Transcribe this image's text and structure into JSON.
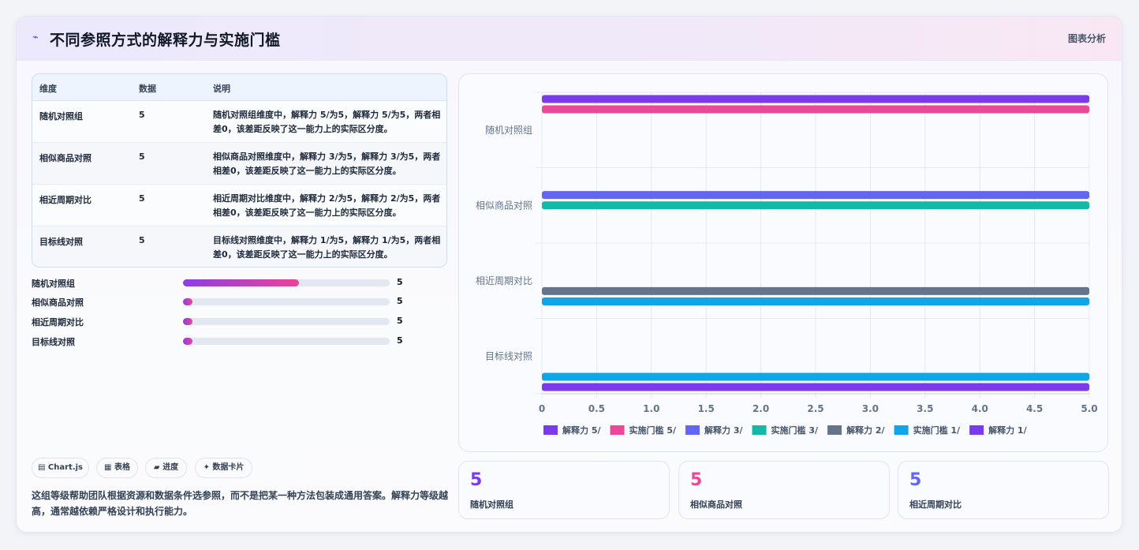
{
  "header": {
    "title": "不同参照方式的解释力与实施门槛",
    "tag": "图表分析"
  },
  "table": {
    "headers": [
      "维度",
      "数据",
      "说明"
    ],
    "rows": [
      {
        "name": "随机对照组",
        "value": "5",
        "desc": "随机对照组维度中，解释力 5/为5，解释力 5/为5，两者相差0，该差距反映了这一能力上的实际区分度。"
      },
      {
        "name": "相似商品对照",
        "value": "5",
        "desc": "相似商品对照维度中，解释力 3/为5，解释力 3/为5，两者相差0，该差距反映了这一能力上的实际区分度。"
      },
      {
        "name": "相近周期对比",
        "value": "5",
        "desc": "相近周期对比维度中，解释力 2/为5，解释力 2/为5，两者相差0，该差距反映了这一能力上的实际区分度。"
      },
      {
        "name": "目标线对照",
        "value": "5",
        "desc": "目标线对照维度中，解释力 1/为5，解释力 1/为5，两者相差0，该差距反映了这一能力上的实际区分度。"
      }
    ]
  },
  "progress": [
    {
      "label": "随机对照组",
      "value": "5",
      "fraction": 0.56
    },
    {
      "label": "相似商品对照",
      "value": "5",
      "fraction": 0.0
    },
    {
      "label": "相近周期对比",
      "value": "5",
      "fraction": 0.0
    },
    {
      "label": "目标线对照",
      "value": "5",
      "fraction": 0.0
    }
  ],
  "chips": [
    "▤ Chart.js",
    "▦ 表格",
    "▰ 进度",
    "✦ 数据卡片"
  ],
  "note": "这组等级帮助团队根据资源和数据条件选参照，而不是把某一种方法包装成通用答案。解释力等级越高，通常越依赖严格设计和执行能力。",
  "kpis": [
    {
      "value": "5",
      "label": "随机对照组",
      "color": "#7c3aed"
    },
    {
      "value": "5",
      "label": "相似商品对照",
      "color": "#ec4899"
    },
    {
      "value": "5",
      "label": "相近周期对比",
      "color": "#6366f1"
    }
  ],
  "chart_data": {
    "type": "bar",
    "orientation": "horizontal",
    "categories": [
      "随机对照组",
      "相似商品对照",
      "相近周期对比",
      "目标线对照"
    ],
    "series": [
      {
        "name": "解释力 5/",
        "color": "#7c3aed",
        "values": [
          5,
          null,
          null,
          null
        ]
      },
      {
        "name": "实施门槛 5/",
        "color": "#ec4899",
        "values": [
          5,
          null,
          null,
          null
        ]
      },
      {
        "name": "解释力 3/",
        "color": "#6366f1",
        "values": [
          null,
          5,
          null,
          null
        ]
      },
      {
        "name": "实施门槛 3/",
        "color": "#14b8a6",
        "values": [
          null,
          5,
          null,
          null
        ]
      },
      {
        "name": "解释力 2/",
        "color": "#64748b",
        "values": [
          null,
          null,
          5,
          null
        ]
      },
      {
        "name": "实施门槛 1/",
        "color": "#0ea5e9",
        "values": [
          null,
          null,
          5,
          5
        ]
      },
      {
        "name": "解释力 1/",
        "color": "#7c3aed",
        "values": [
          null,
          null,
          null,
          5
        ]
      }
    ],
    "xlim": [
      0,
      5
    ],
    "xticks": [
      "0",
      "0.5",
      "1.0",
      "1.5",
      "2.0",
      "2.5",
      "3.0",
      "3.5",
      "4.0",
      "4.5",
      "5.0"
    ],
    "grid": true,
    "legend": "bottom"
  }
}
